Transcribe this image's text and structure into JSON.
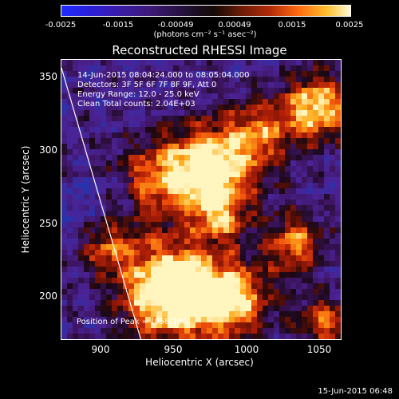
{
  "colorbar": {
    "ticks": [
      "-0.0025",
      "-0.0015",
      "-0.00049",
      "0.00049",
      "0.0015",
      "0.0025"
    ],
    "units": "(photons cm⁻² s⁻¹ asec⁻²)"
  },
  "title": "Reconstructed RHESSI Image",
  "info": {
    "time_range": "14-Jun-2015 08:04:24.000 to 08:05:04.000",
    "detectors": "Detectors: 3F 5F 6F 7F 8F 9F, Att 0",
    "energy_range": "Energy Range: 12.0 - 25.0 keV",
    "method_counts": "Clean     Total counts: 2.04E+03",
    "peak": "Position of Peak = [958,196]"
  },
  "axes": {
    "xlabel": "Heliocentric X (arcsec)",
    "ylabel": "Heliocentric Y (arcsec)",
    "xticks": [
      "900",
      "950",
      "1000",
      "1050"
    ],
    "yticks": [
      "350",
      "300",
      "250",
      "200"
    ]
  },
  "footer_date": "15-Jun-2015 06:48",
  "colors": {
    "background": "#000000",
    "foreground": "#ffffff"
  }
}
